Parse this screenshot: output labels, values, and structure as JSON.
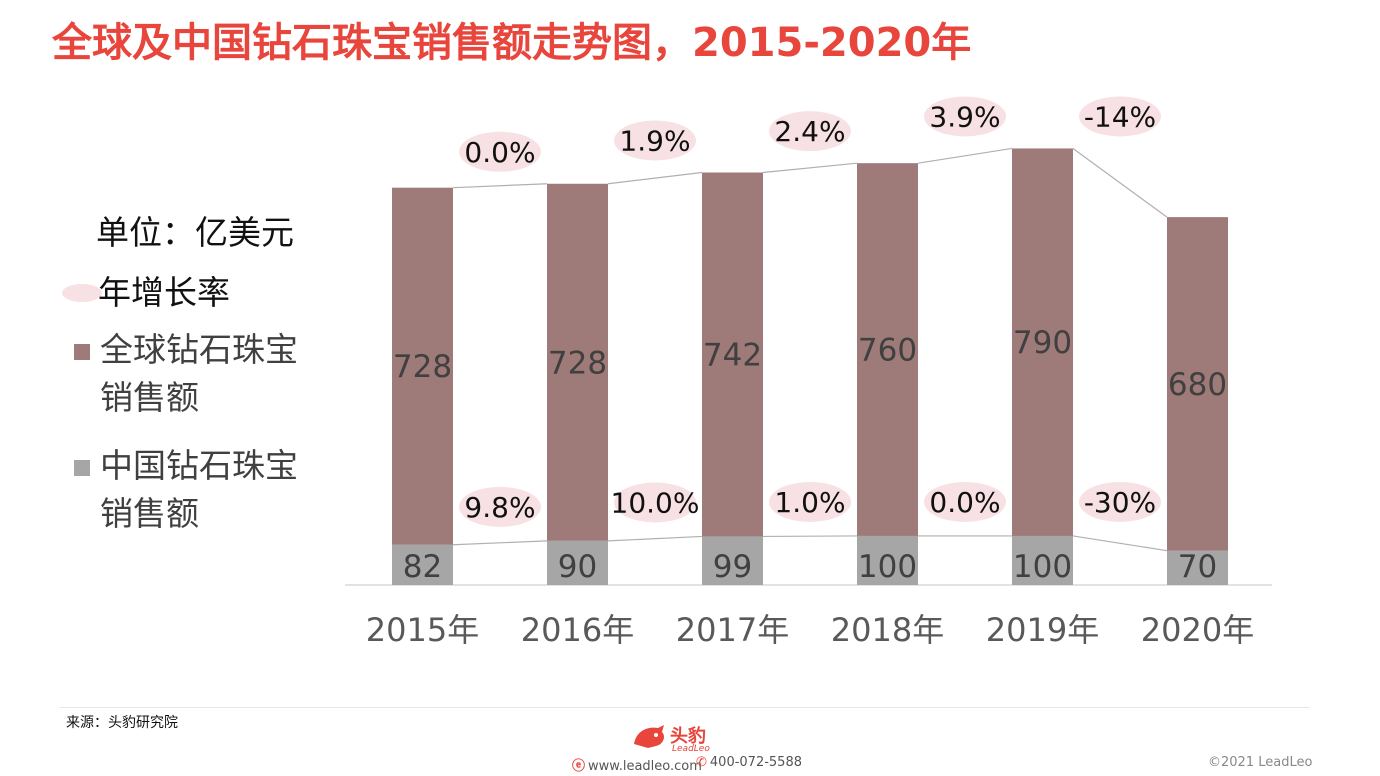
{
  "title": "全球及中国钻石珠宝销售额走势图，2015-2020年",
  "legend": {
    "unit": "单位：亿美元",
    "rate": "年增长率",
    "global_line1": "全球钻石珠宝",
    "global_line2": "销售额",
    "china_line1": "中国钻石珠宝",
    "china_line2": "销售额"
  },
  "chart_data": {
    "type": "bar",
    "stacked": true,
    "categories": [
      "2015年",
      "2016年",
      "2017年",
      "2018年",
      "2019年",
      "2020年"
    ],
    "series": [
      {
        "name": "中国钻石珠宝销售额",
        "values": [
          82,
          90,
          99,
          100,
          100,
          70
        ],
        "color": "#a6a6a6"
      },
      {
        "name": "全球钻石珠宝销售额",
        "values": [
          728,
          728,
          742,
          760,
          790,
          680
        ],
        "color": "#9e7a78"
      }
    ],
    "growth_labels": {
      "global": [
        "0.0%",
        "1.9%",
        "2.4%",
        "3.9%",
        "-14%"
      ],
      "china": [
        "9.8%",
        "10.0%",
        "1.0%",
        "0.0%",
        "-30%"
      ]
    },
    "legend_position": "left",
    "grid": false
  },
  "footer": {
    "source": "来源：头豹研究院",
    "website": "www.leadleo.com",
    "phone": "400-072-5588",
    "copyright": "©2021 LeadLeo",
    "logo_text": "头豹",
    "logo_sub": "LeadLeo"
  },
  "colors": {
    "title": "#e8453c",
    "global_bar": "#9e7a78",
    "china_bar": "#a6a6a6",
    "bubble": "#f7e1e4",
    "line": "#b0b0b0"
  },
  "icons": [
    "logo-icon",
    "e-icon",
    "phone-icon"
  ]
}
